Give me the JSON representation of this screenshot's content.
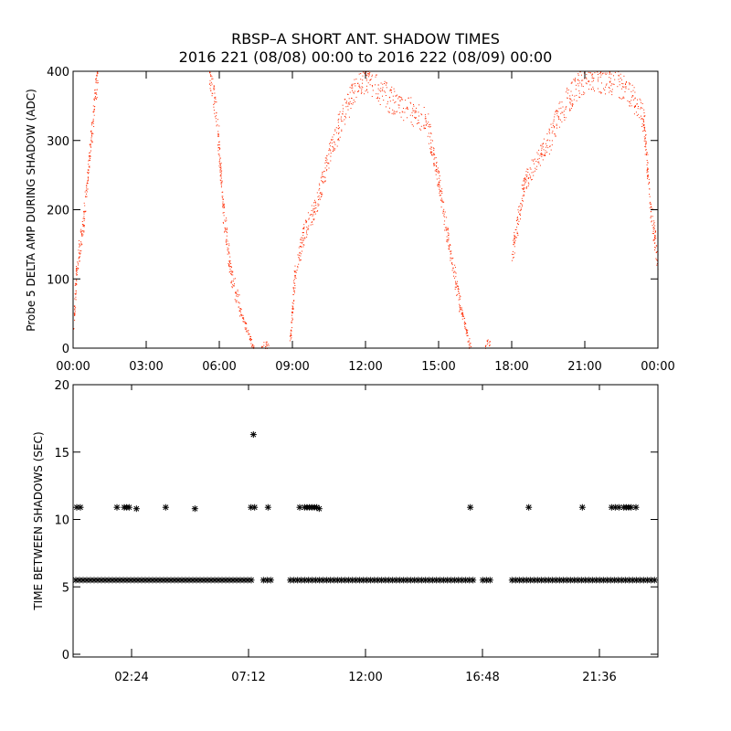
{
  "title_line1": "RBSP–A SHORT ANT. SHADOW TIMES",
  "title_line2": "2016 221 (08/08) 00:00 to 2016 222 (08/09) 00:00",
  "colors": {
    "top_series": "#ff2a00",
    "bottom_series": "#000000",
    "axes": "#000000",
    "background": "#ffffff"
  },
  "chart_data": [
    {
      "type": "scatter",
      "ylabel": "Probe 5 DELTA AMP DURING SHADOW (ADC)",
      "xlabel": "",
      "xlim": [
        "00:00",
        "24:00"
      ],
      "ylim": [
        0,
        400
      ],
      "x_ticks": [
        "00:00",
        "03:00",
        "06:00",
        "09:00",
        "12:00",
        "15:00",
        "18:00",
        "21:00",
        "00:00"
      ],
      "y_ticks": [
        "0",
        "100",
        "200",
        "300",
        "400"
      ],
      "marker_color": "#ff2a00",
      "series_description": "dense point cloud; piecewise trend in hours vs ADC",
      "segments": [
        {
          "x": [
            0.0,
            0.15,
            0.4,
            0.6,
            0.8,
            1.0
          ],
          "y": [
            30,
            120,
            180,
            250,
            330,
            400
          ]
        },
        {
          "x": [
            5.6,
            5.9,
            6.15,
            6.5,
            6.9,
            7.4
          ],
          "y": [
            400,
            330,
            200,
            100,
            50,
            0
          ]
        },
        {
          "x": [
            7.7,
            8.0
          ],
          "y": [
            5,
            5
          ]
        },
        {
          "x": [
            8.9,
            9.1,
            9.5,
            10.0,
            10.5,
            11.0,
            11.5,
            12.0
          ],
          "y": [
            10,
            110,
            170,
            210,
            280,
            330,
            370,
            390
          ]
        },
        {
          "x": [
            12.0,
            13.0,
            14.0,
            14.5,
            15.0,
            15.4,
            15.9,
            16.3
          ],
          "y": [
            390,
            360,
            340,
            330,
            240,
            150,
            60,
            0
          ]
        },
        {
          "x": [
            16.9,
            17.0,
            17.1
          ],
          "y": [
            5,
            10,
            5
          ]
        },
        {
          "x": [
            18.0,
            18.5,
            19.0,
            19.5,
            20.0,
            20.5,
            21.0,
            21.5,
            22.0,
            22.5,
            23.0,
            23.4,
            23.7,
            24.0
          ],
          "y": [
            130,
            240,
            270,
            300,
            340,
            370,
            390,
            390,
            385,
            380,
            360,
            330,
            200,
            120
          ]
        }
      ]
    },
    {
      "type": "scatter",
      "ylabel": "TIME BETWEEN SHADOWS (SEC)",
      "xlabel": "",
      "xlim": [
        "00:00",
        "24:00"
      ],
      "ylim": [
        0,
        20
      ],
      "x_ticks": [
        "02:24",
        "07:12",
        "12:00",
        "16:48",
        "21:36"
      ],
      "y_ticks": [
        "0",
        "5",
        "10",
        "15",
        "20"
      ],
      "marker": "asterisk",
      "marker_color": "#000000",
      "baseline": {
        "y": 5.5,
        "x_ranges": [
          [
            0.0,
            7.5
          ],
          [
            7.7,
            8.3
          ],
          [
            8.8,
            16.5
          ],
          [
            16.7,
            17.2
          ],
          [
            17.9,
            24.0
          ]
        ]
      },
      "points": [
        {
          "x": 0.15,
          "y": 10.9
        },
        {
          "x": 0.3,
          "y": 10.9
        },
        {
          "x": 1.8,
          "y": 10.9
        },
        {
          "x": 2.1,
          "y": 10.9
        },
        {
          "x": 2.2,
          "y": 10.9
        },
        {
          "x": 2.3,
          "y": 10.9
        },
        {
          "x": 2.6,
          "y": 10.8
        },
        {
          "x": 3.8,
          "y": 10.9
        },
        {
          "x": 5.0,
          "y": 10.8
        },
        {
          "x": 7.4,
          "y": 16.3
        },
        {
          "x": 7.3,
          "y": 10.9
        },
        {
          "x": 7.45,
          "y": 10.9
        },
        {
          "x": 8.0,
          "y": 10.9
        },
        {
          "x": 9.3,
          "y": 10.9
        },
        {
          "x": 9.5,
          "y": 10.9
        },
        {
          "x": 9.6,
          "y": 10.9
        },
        {
          "x": 9.7,
          "y": 10.9
        },
        {
          "x": 9.8,
          "y": 10.9
        },
        {
          "x": 9.9,
          "y": 10.9
        },
        {
          "x": 10.0,
          "y": 10.9
        },
        {
          "x": 10.1,
          "y": 10.8
        },
        {
          "x": 16.3,
          "y": 10.9
        },
        {
          "x": 18.7,
          "y": 10.9
        },
        {
          "x": 20.9,
          "y": 10.9
        },
        {
          "x": 22.1,
          "y": 10.9
        },
        {
          "x": 22.25,
          "y": 10.9
        },
        {
          "x": 22.4,
          "y": 10.9
        },
        {
          "x": 22.6,
          "y": 10.9
        },
        {
          "x": 22.7,
          "y": 10.9
        },
        {
          "x": 22.8,
          "y": 10.9
        },
        {
          "x": 22.9,
          "y": 10.9
        },
        {
          "x": 23.1,
          "y": 10.9
        }
      ]
    }
  ]
}
